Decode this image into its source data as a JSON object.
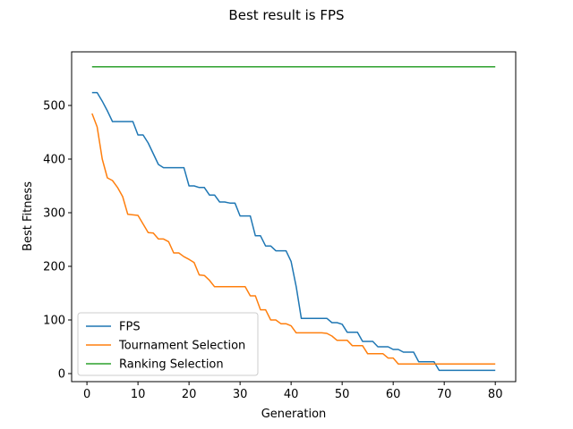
{
  "chart_data": {
    "type": "line",
    "title": "Best result is FPS",
    "xlabel": "Generation",
    "ylabel": "Best Fitness",
    "xlim": [
      -3,
      84
    ],
    "ylim": [
      -15,
      600
    ],
    "xticks": [
      0,
      10,
      20,
      30,
      40,
      50,
      60,
      70,
      80
    ],
    "yticks": [
      0,
      100,
      200,
      300,
      400,
      500
    ],
    "grid": false,
    "legend_position": "lower-left",
    "series": [
      {
        "name": "FPS",
        "color": "#1f77b4",
        "x": [
          1,
          2,
          3,
          4,
          5,
          6,
          7,
          8,
          9,
          10,
          11,
          12,
          13,
          14,
          15,
          16,
          17,
          18,
          19,
          20,
          21,
          22,
          23,
          24,
          25,
          26,
          27,
          28,
          29,
          30,
          31,
          32,
          33,
          34,
          35,
          36,
          37,
          38,
          39,
          40,
          41,
          42,
          43,
          44,
          45,
          46,
          47,
          48,
          49,
          50,
          51,
          52,
          53,
          54,
          55,
          56,
          57,
          58,
          59,
          60,
          61,
          62,
          63,
          64,
          65,
          66,
          67,
          68,
          69,
          70,
          71,
          72,
          73,
          74,
          75,
          76,
          77,
          78,
          79,
          80
        ],
        "y": [
          524,
          524,
          508,
          490,
          470,
          470,
          470,
          470,
          470,
          445,
          445,
          430,
          410,
          390,
          384,
          384,
          384,
          384,
          384,
          350,
          350,
          347,
          347,
          333,
          333,
          320,
          320,
          318,
          318,
          294,
          294,
          294,
          257,
          257,
          238,
          238,
          229,
          229,
          229,
          209,
          162,
          103,
          103,
          103,
          103,
          103,
          103,
          95,
          95,
          92,
          77,
          77,
          77,
          60,
          60,
          60,
          50,
          50,
          50,
          45,
          45,
          40,
          40,
          40,
          22,
          22,
          22,
          22,
          6,
          6,
          6,
          6,
          6,
          6,
          6,
          6,
          6,
          6,
          6,
          6
        ]
      },
      {
        "name": "Tournament Selection",
        "color": "#ff7f0e",
        "x": [
          1,
          2,
          3,
          4,
          5,
          6,
          7,
          8,
          9,
          10,
          11,
          12,
          13,
          14,
          15,
          16,
          17,
          18,
          19,
          20,
          21,
          22,
          23,
          24,
          25,
          26,
          27,
          28,
          29,
          30,
          31,
          32,
          33,
          34,
          35,
          36,
          37,
          38,
          39,
          40,
          41,
          42,
          43,
          44,
          45,
          46,
          47,
          48,
          49,
          50,
          51,
          52,
          53,
          54,
          55,
          56,
          57,
          58,
          59,
          60,
          61,
          62,
          63,
          64,
          65,
          66,
          67,
          68,
          69,
          70,
          71,
          72,
          73,
          74,
          75,
          76,
          77,
          78,
          79,
          80
        ],
        "y": [
          485,
          460,
          400,
          365,
          360,
          347,
          330,
          297,
          296,
          295,
          279,
          263,
          262,
          251,
          251,
          246,
          225,
          225,
          218,
          213,
          207,
          184,
          183,
          174,
          162,
          162,
          162,
          162,
          162,
          162,
          162,
          145,
          145,
          119,
          119,
          100,
          100,
          93,
          93,
          89,
          76,
          76,
          76,
          76,
          76,
          76,
          75,
          70,
          62,
          62,
          62,
          52,
          52,
          52,
          37,
          37,
          37,
          37,
          29,
          29,
          18,
          18,
          18,
          18,
          18,
          18,
          18,
          18,
          18,
          18,
          18,
          18,
          18,
          18,
          18,
          18,
          18,
          18,
          18,
          18
        ]
      },
      {
        "name": "Ranking Selection",
        "color": "#2ca02c",
        "x": [
          1,
          80
        ],
        "y": [
          572,
          572
        ]
      }
    ]
  }
}
